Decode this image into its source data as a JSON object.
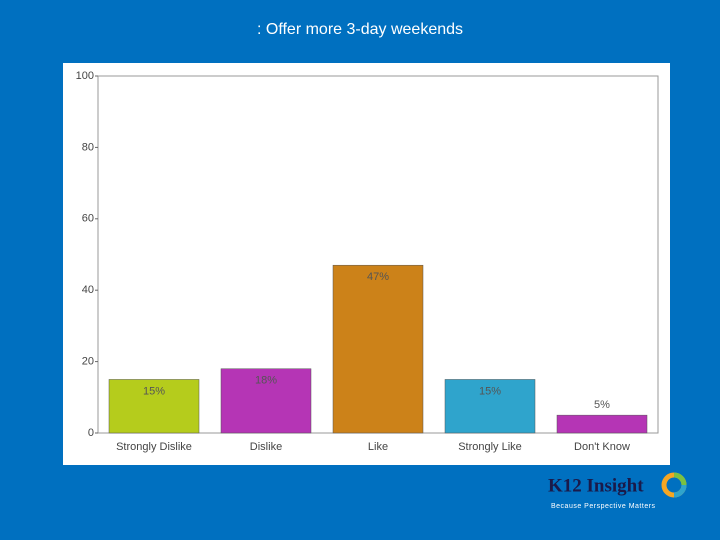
{
  "chart_data": {
    "type": "bar",
    "title": ": Offer more 3-day weekends",
    "categories": [
      "Strongly Dislike",
      "Dislike",
      "Like",
      "Strongly Like",
      "Don't Know"
    ],
    "values": [
      15,
      18,
      47,
      15,
      5
    ],
    "value_labels": [
      "15%",
      "18%",
      "47%",
      "15%",
      "5%"
    ],
    "colors": [
      "#b5cc1c",
      "#b535b5",
      "#cc8219",
      "#2fa4cc",
      "#b535b5"
    ],
    "ylim": [
      0,
      100
    ],
    "yticks": [
      0,
      20,
      40,
      60,
      80,
      100
    ],
    "grid": false
  },
  "logo": {
    "name": "K12 Insight",
    "tagline": "Because Perspective Matters"
  }
}
